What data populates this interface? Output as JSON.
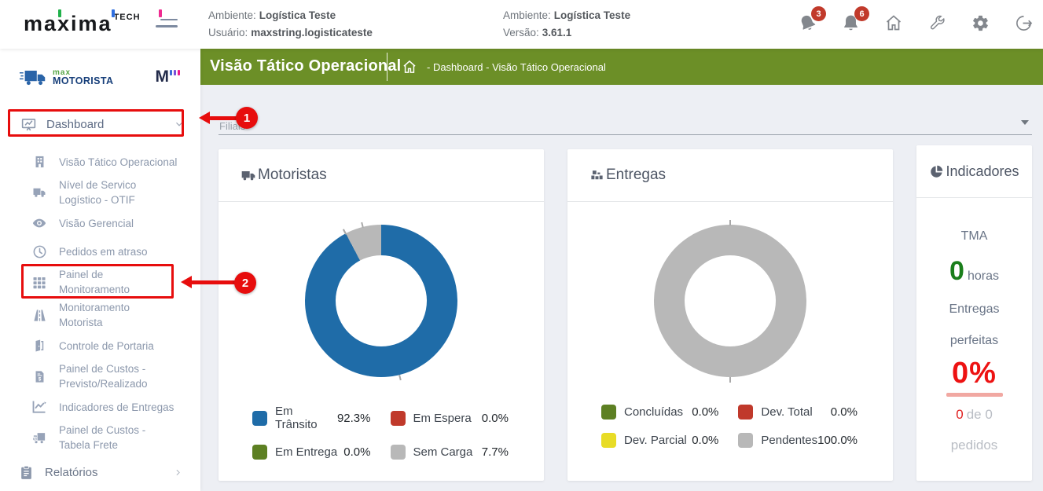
{
  "topbar": {
    "brand": {
      "name": "maxima",
      "suffix": "TECH"
    },
    "info_left": {
      "rows": [
        {
          "label": "Ambiente:",
          "value": "Logística Teste"
        },
        {
          "label": "Usuário:",
          "value": "maxstring.logisticateste"
        }
      ]
    },
    "info_right": {
      "rows": [
        {
          "label": "Ambiente:",
          "value": "Logística Teste"
        },
        {
          "label": "Versão:",
          "value": "3.61.1"
        }
      ]
    },
    "notifications": [
      {
        "icon": "bell",
        "count": "3"
      },
      {
        "icon": "bell",
        "count": "6"
      }
    ],
    "actions": [
      {
        "icon": "home"
      },
      {
        "icon": "wrench"
      },
      {
        "icon": "gear"
      },
      {
        "icon": "logout"
      }
    ]
  },
  "sidebar": {
    "logo": {
      "small": "max",
      "big": "MOTORISTA",
      "monogram": "M"
    },
    "dashboard": {
      "icon": "dashboard-board",
      "label": "Dashboard"
    },
    "items": [
      {
        "id": "visao-tatico-operacional",
        "icon": "building",
        "lines": [
          "Visão Tático Operacional"
        ]
      },
      {
        "id": "nivel-servico-otif",
        "icon": "truck",
        "lines": [
          "Nível de Servico",
          "Logístico - OTIF"
        ]
      },
      {
        "id": "visao-gerencial",
        "icon": "eye",
        "lines": [
          "Visão Gerencial"
        ]
      },
      {
        "id": "pedidos-em-atraso",
        "icon": "clock",
        "lines": [
          "Pedidos em atraso"
        ]
      },
      {
        "id": "painel-de-monitoramento",
        "icon": "grid",
        "lines": [
          "Painel de",
          "Monitoramento"
        ]
      },
      {
        "id": "monitoramento-motorista",
        "icon": "road",
        "lines": [
          "Monitoramento",
          "Motorista"
        ]
      },
      {
        "id": "controle-de-portaria",
        "icon": "door",
        "lines": [
          "Controle de Portaria"
        ]
      },
      {
        "id": "painel-custos-previsto-realizado",
        "icon": "invoice",
        "lines": [
          "Painel de Custos -",
          "Previsto/Realizado"
        ]
      },
      {
        "id": "indicadores-de-entregas",
        "icon": "chart-line",
        "lines": [
          "Indicadores de Entregas"
        ]
      },
      {
        "id": "painel-custos-tabela-frete",
        "icon": "truck-cost",
        "lines": [
          "Painel de Custos -",
          "Tabela Frete"
        ]
      }
    ],
    "relatorios": {
      "icon": "clipboard",
      "label": "Relatórios"
    }
  },
  "content": {
    "page_title": "Visão Tático Operacional",
    "breadcrumb_icon": "home",
    "breadcrumb": "- Dashboard - Visão Tático Operacional",
    "filiais": {
      "label": "Filiais"
    }
  },
  "chart_data": [
    {
      "type": "pie",
      "donut": true,
      "title": "Motoristas",
      "icon": "truck",
      "labels": [
        "Em Trânsito",
        "Em Espera",
        "Em Entrega",
        "Sem Carga"
      ],
      "values": [
        92.3,
        0.0,
        0.0,
        7.7
      ],
      "colors": [
        "#1f6ca8",
        "#c0392b",
        "#5d8023",
        "#b8b8b8"
      ],
      "legend_position": "bottom"
    },
    {
      "type": "pie",
      "donut": true,
      "title": "Entregas",
      "icon": "boxes",
      "labels": [
        "Concluídas",
        "Dev. Total",
        "Dev. Parcial",
        "Pendentes"
      ],
      "values": [
        0.0,
        0.0,
        0.0,
        100.0
      ],
      "colors": [
        "#5d8023",
        "#c0392b",
        "#e8dc26",
        "#b8b8b8"
      ],
      "legend_position": "bottom"
    }
  ],
  "indicators_card": {
    "title": "Indicadores",
    "icon": "pie-chart",
    "tma_label": "TMA",
    "tma_value": "0",
    "tma_unit": "horas",
    "perfect_line1": "Entregas",
    "perfect_line2": "perfeitas",
    "perfect_value": "0%",
    "count_value": "0",
    "count_rest": "de 0",
    "orders_label": "pedidos"
  },
  "annotations": [
    {
      "step": "1",
      "target": "dashboard"
    },
    {
      "step": "2",
      "target": "painel-de-monitoramento"
    }
  ]
}
